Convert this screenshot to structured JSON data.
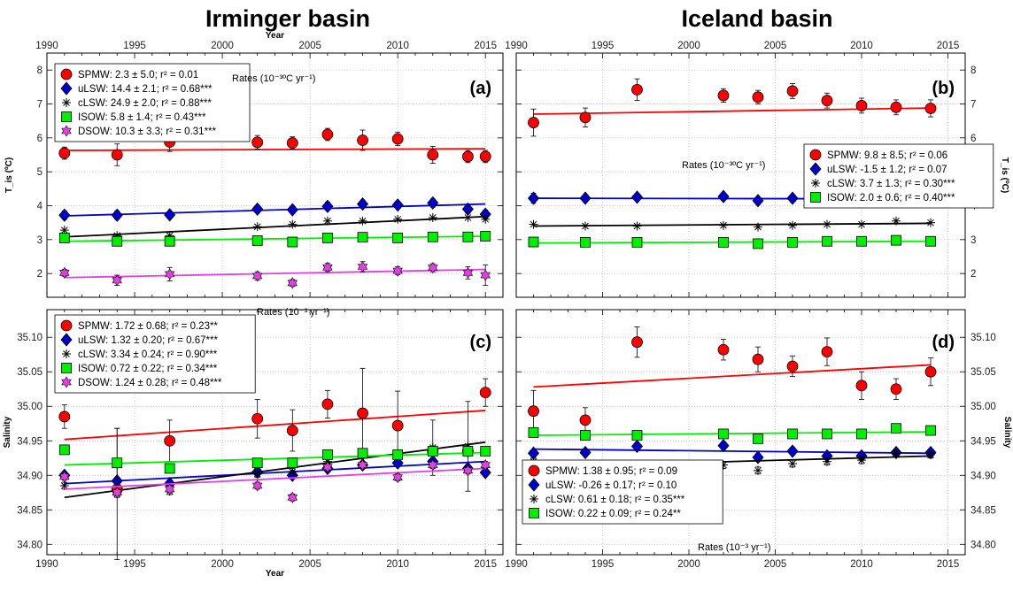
{
  "titles": {
    "left": "Irminger basin",
    "right": "Iceland basin"
  },
  "xlabel": "Year",
  "colors": {
    "SPMW": "#ff0000",
    "uLSW": "#0000cc",
    "cLSW": "#000000",
    "ISOW": "#00ee00",
    "DSOW": "#e040e0"
  },
  "chart_data": [
    {
      "type": "scatter",
      "panel_label": "(a)",
      "xlim": [
        1990,
        2016
      ],
      "ylim": [
        1.3,
        8.5
      ],
      "xticks": [
        "1990",
        "1995",
        "2000",
        "2005",
        "2010",
        "2015"
      ],
      "yticks": [
        "2",
        "3",
        "4",
        "5",
        "6",
        "7",
        "8"
      ],
      "ylabel": "T_is (ºC)",
      "rates": "Rates (10⁻³ºC yr⁻¹)",
      "series": [
        {
          "name": "SPMW",
          "legend": "SPMW: 2.3 ± 5.0; r² = 0.01",
          "x": [
            1991,
            1994,
            1997,
            2002,
            2004,
            2006,
            2008,
            2010,
            2012,
            2014,
            2015
          ],
          "y": [
            5.55,
            5.5,
            5.88,
            5.87,
            5.85,
            6.1,
            5.93,
            5.97,
            5.5,
            5.45,
            5.45
          ],
          "err": [
            0.18,
            0.32,
            0.28,
            0.2,
            0.18,
            0.18,
            0.3,
            0.2,
            0.25,
            0.18,
            0.18
          ],
          "trend": [
            [
              1991,
              5.63
            ],
            [
              2015,
              5.68
            ]
          ]
        },
        {
          "name": "uLSW",
          "legend": "uLSW: 14.4 ± 2.1; r² = 0.68***",
          "x": [
            1991,
            1994,
            1997,
            2002,
            2004,
            2006,
            2008,
            2010,
            2012,
            2014,
            2015
          ],
          "y": [
            3.72,
            3.72,
            3.73,
            3.9,
            3.88,
            3.98,
            4.05,
            4.02,
            4.08,
            3.9,
            3.75
          ],
          "err": [
            0.12,
            0.12,
            0.1,
            0.1,
            0.1,
            0.12,
            0.1,
            0.1,
            0.12,
            0.12,
            0.12
          ],
          "trend": [
            [
              1991,
              3.7
            ],
            [
              2015,
              4.05
            ]
          ]
        },
        {
          "name": "cLSW",
          "legend": "cLSW: 24.9 ± 2.0; r² = 0.88***",
          "x": [
            1991,
            1994,
            1997,
            2002,
            2004,
            2006,
            2008,
            2010,
            2012,
            2014,
            2015
          ],
          "y": [
            3.28,
            3.12,
            3.12,
            3.38,
            3.45,
            3.55,
            3.55,
            3.6,
            3.65,
            3.65,
            3.6
          ],
          "err": [
            0,
            0,
            0,
            0,
            0,
            0,
            0,
            0,
            0,
            0,
            0
          ],
          "trend": [
            [
              1991,
              3.08
            ],
            [
              2015,
              3.68
            ]
          ]
        },
        {
          "name": "ISOW",
          "legend": "ISOW: 5.8 ± 1.4; r² = 0.43***",
          "x": [
            1991,
            1994,
            1997,
            2002,
            2004,
            2006,
            2008,
            2010,
            2012,
            2014,
            2015
          ],
          "y": [
            3.05,
            2.95,
            2.95,
            2.97,
            2.93,
            3.05,
            3.07,
            3.05,
            3.08,
            3.08,
            3.1
          ],
          "err": [
            0.08,
            0.08,
            0.08,
            0.08,
            0.08,
            0.08,
            0.08,
            0.08,
            0.08,
            0.08,
            0.08
          ],
          "trend": [
            [
              1991,
              2.95
            ],
            [
              2015,
              3.1
            ]
          ]
        },
        {
          "name": "DSOW",
          "legend": "DSOW: 10.3 ± 3.3; r² = 0.31***",
          "x": [
            1991,
            1994,
            1997,
            2002,
            2004,
            2006,
            2008,
            2010,
            2012,
            2014,
            2015
          ],
          "y": [
            2.02,
            1.8,
            1.98,
            1.93,
            1.72,
            2.18,
            2.2,
            2.08,
            2.17,
            2.02,
            1.95
          ],
          "err": [
            0.1,
            0.15,
            0.2,
            0.12,
            0.1,
            0.12,
            0.15,
            0.12,
            0.12,
            0.18,
            0.3
          ],
          "trend": [
            [
              1991,
              1.88
            ],
            [
              2015,
              2.12
            ]
          ]
        }
      ]
    },
    {
      "type": "scatter",
      "panel_label": "(b)",
      "xlim": [
        1990,
        2016
      ],
      "ylim": [
        1.3,
        8.5
      ],
      "xticks": [
        "1990",
        "1995",
        "2000",
        "2005",
        "2010",
        "2015"
      ],
      "yticks": [
        "2",
        "3",
        "4",
        "5",
        "6",
        "7",
        "8"
      ],
      "ylabel": "T_is (ºC)",
      "rates": "Rates (10⁻³ºC yr⁻¹)",
      "series": [
        {
          "name": "SPMW",
          "legend": "SPMW: 9.8 ± 8.5; r² = 0.06",
          "x": [
            1991,
            1994,
            1997,
            2002,
            2004,
            2006,
            2008,
            2010,
            2012,
            2014
          ],
          "y": [
            6.45,
            6.6,
            7.42,
            7.25,
            7.2,
            7.38,
            7.1,
            6.95,
            6.9,
            6.87
          ],
          "err": [
            0.4,
            0.28,
            0.32,
            0.2,
            0.2,
            0.22,
            0.22,
            0.22,
            0.22,
            0.25
          ],
          "trend": [
            [
              1991,
              6.7
            ],
            [
              2014,
              6.88
            ]
          ]
        },
        {
          "name": "uLSW",
          "legend": "uLSW: -1.5 ± 1.2; r² = 0.07",
          "x": [
            1991,
            1994,
            1997,
            2002,
            2004,
            2006,
            2008,
            2010,
            2012,
            2014
          ],
          "y": [
            4.22,
            4.22,
            4.25,
            4.27,
            4.15,
            4.22,
            4.18,
            4.2,
            4.22,
            4.22
          ],
          "err": [
            0.15,
            0.08,
            0.08,
            0.1,
            0.1,
            0.1,
            0.1,
            0.1,
            0.1,
            0.1
          ],
          "trend": [
            [
              1991,
              4.22
            ],
            [
              2014,
              4.2
            ]
          ]
        },
        {
          "name": "cLSW",
          "legend": "cLSW: 3.7 ± 1.3; r² = 0.30***",
          "x": [
            1991,
            1994,
            1997,
            2002,
            2004,
            2006,
            2008,
            2010,
            2012,
            2014
          ],
          "y": [
            3.45,
            3.4,
            3.4,
            3.42,
            3.37,
            3.42,
            3.45,
            3.45,
            3.55,
            3.5
          ],
          "err": [
            0,
            0,
            0,
            0,
            0,
            0,
            0,
            0,
            0,
            0
          ],
          "trend": [
            [
              1991,
              3.4
            ],
            [
              2014,
              3.48
            ]
          ]
        },
        {
          "name": "ISOW",
          "legend": "ISOW: 2.0 ± 0.6; r² = 0.40***",
          "x": [
            1991,
            1994,
            1997,
            2002,
            2004,
            2006,
            2008,
            2010,
            2012,
            2014
          ],
          "y": [
            2.93,
            2.92,
            2.92,
            2.92,
            2.88,
            2.92,
            2.95,
            2.95,
            2.98,
            2.95
          ],
          "err": [
            0.05,
            0.05,
            0.05,
            0.05,
            0.05,
            0.05,
            0.05,
            0.05,
            0.05,
            0.05
          ],
          "trend": [
            [
              1991,
              2.9
            ],
            [
              2014,
              2.95
            ]
          ]
        }
      ]
    },
    {
      "type": "scatter",
      "panel_label": "(c)",
      "xlim": [
        1990,
        2016
      ],
      "ylim": [
        34.785,
        35.14
      ],
      "xticks": [
        "1990",
        "1995",
        "2000",
        "2005",
        "2010",
        "2015"
      ],
      "yticks": [
        "34.80",
        "34.85",
        "34.90",
        "34.95",
        "35.00",
        "35.05",
        "35.10"
      ],
      "ylabel": "Salinity",
      "rates": "Rates (10⁻³ yr⁻¹)",
      "series": [
        {
          "name": "SPMW",
          "legend": "SPMW: 1.72 ± 0.68; r² = 0.23**",
          "x": [
            1991,
            1994,
            1997,
            2002,
            2004,
            2006,
            2008,
            2010,
            2012,
            2014,
            2015
          ],
          "y": [
            34.985,
            34.88,
            34.95,
            34.982,
            34.965,
            35.003,
            34.99,
            34.972,
            34.935,
            34.935,
            35.02
          ],
          "err": [
            0.017,
            0.0,
            0.03,
            0.028,
            0.03,
            0.02,
            0.065,
            0.05,
            0.0,
            0.0,
            0.02
          ],
          "trend": [
            [
              1991,
              34.952
            ],
            [
              2015,
              34.994
            ]
          ]
        },
        {
          "name": "uLSW",
          "legend": "uLSW: 1.32 ± 0.20; r² = 0.67***",
          "x": [
            1991,
            1994,
            1997,
            2002,
            2004,
            2006,
            2008,
            2010,
            2012,
            2014,
            2015
          ],
          "y": [
            34.9,
            34.892,
            34.888,
            34.905,
            34.9,
            34.91,
            34.915,
            34.918,
            34.92,
            34.91,
            34.904
          ],
          "err": [
            0.005,
            0.005,
            0.005,
            0.005,
            0.005,
            0.005,
            0.005,
            0.005,
            0.005,
            0.005,
            0.005
          ],
          "trend": [
            [
              1991,
              34.888
            ],
            [
              2015,
              34.92
            ]
          ]
        },
        {
          "name": "cLSW",
          "legend": "cLSW: 3.34 ± 0.24; r² = 0.90***",
          "x": [
            1991,
            1994,
            1997,
            2002,
            2004,
            2006,
            2008,
            2010,
            2012,
            2014,
            2015
          ],
          "y": [
            34.885,
            34.873,
            34.877,
            34.902,
            34.905,
            34.92,
            34.915,
            34.93,
            34.94,
            34.942,
            34.935
          ],
          "err": [
            0.005,
            0.095,
            0.005,
            0.005,
            0.005,
            0.005,
            0.005,
            0.005,
            0.04,
            0.065,
            0.005
          ],
          "trend": [
            [
              1991,
              34.868
            ],
            [
              2015,
              34.948
            ]
          ]
        },
        {
          "name": "ISOW",
          "legend": "ISOW: 0.72 ± 0.22; r² = 0.34***",
          "x": [
            1991,
            1994,
            1997,
            2002,
            2004,
            2006,
            2008,
            2010,
            2012,
            2014,
            2015
          ],
          "y": [
            34.937,
            34.918,
            34.91,
            34.918,
            34.918,
            34.93,
            34.932,
            34.93,
            34.935,
            34.935,
            34.935
          ],
          "err": [
            0.004,
            0.05,
            0.004,
            0.004,
            0.004,
            0.004,
            0.004,
            0.004,
            0.004,
            0.004,
            0.004
          ],
          "trend": [
            [
              1991,
              34.915
            ],
            [
              2015,
              34.933
            ]
          ]
        },
        {
          "name": "DSOW",
          "legend": "DSOW: 1.24 ± 0.28; r² = 0.48***",
          "x": [
            1991,
            1994,
            1997,
            2002,
            2004,
            2006,
            2008,
            2010,
            2012,
            2014,
            2015
          ],
          "y": [
            34.898,
            34.875,
            34.88,
            34.885,
            34.868,
            34.912,
            34.915,
            34.897,
            34.915,
            34.907,
            34.915
          ],
          "err": [
            0.005,
            0.005,
            0.005,
            0.005,
            0.005,
            0.005,
            0.005,
            0.005,
            0.005,
            0.005,
            0.005
          ],
          "trend": [
            [
              1991,
              34.88
            ],
            [
              2015,
              34.91
            ]
          ]
        }
      ]
    },
    {
      "type": "scatter",
      "panel_label": "(d)",
      "xlim": [
        1990,
        2016
      ],
      "ylim": [
        34.785,
        35.14
      ],
      "xticks": [
        "1990",
        "1995",
        "2000",
        "2005",
        "2010",
        "2015"
      ],
      "yticks": [
        "34.80",
        "34.85",
        "34.90",
        "34.95",
        "35.00",
        "35.05",
        "35.10"
      ],
      "ylabel": "Salinity",
      "rates": "Rates (10⁻³ yr⁻¹)",
      "series": [
        {
          "name": "SPMW",
          "legend": "SPMW: 1.38 ± 0.95; r² = 0.09",
          "x": [
            1991,
            1994,
            1997,
            2002,
            2004,
            2006,
            2008,
            2010,
            2012,
            2014
          ],
          "y": [
            34.993,
            34.98,
            35.093,
            35.082,
            35.068,
            35.058,
            35.079,
            35.03,
            35.025,
            35.05
          ],
          "err": [
            0.03,
            0.018,
            0.022,
            0.015,
            0.018,
            0.015,
            0.02,
            0.02,
            0.015,
            0.02
          ],
          "trend": [
            [
              1991,
              35.028
            ],
            [
              2014,
              35.06
            ]
          ]
        },
        {
          "name": "uLSW",
          "legend": "uLSW: -0.26 ± 0.17; r² = 0.10",
          "x": [
            1991,
            1994,
            1997,
            2002,
            2004,
            2006,
            2008,
            2010,
            2012,
            2014
          ],
          "y": [
            34.932,
            34.933,
            34.942,
            34.943,
            34.926,
            34.935,
            34.928,
            34.928,
            34.933,
            34.933
          ],
          "err": [
            0.005,
            0.005,
            0.005,
            0.005,
            0.005,
            0.005,
            0.005,
            0.005,
            0.005,
            0.005
          ],
          "trend": [
            [
              1991,
              34.938
            ],
            [
              2014,
              34.932
            ]
          ]
        },
        {
          "name": "cLSW",
          "legend": "cLSW: 0.61 ± 0.18; r² = 0.35***",
          "x": [
            1991,
            1994,
            1997,
            2002,
            2004,
            2006,
            2008,
            2010,
            2012,
            2014
          ],
          "y": [
            34.92,
            34.915,
            34.913,
            34.915,
            34.907,
            34.917,
            34.92,
            34.922,
            34.932,
            34.93
          ],
          "err": [
            0.005,
            0.005,
            0.005,
            0.005,
            0.005,
            0.005,
            0.005,
            0.005,
            0.005,
            0.005
          ],
          "trend": [
            [
              1991,
              34.912
            ],
            [
              2014,
              34.928
            ]
          ]
        },
        {
          "name": "ISOW",
          "legend": "ISOW: 0.22 ± 0.09; r² = 0.24**",
          "x": [
            1991,
            1994,
            1997,
            2002,
            2004,
            2006,
            2008,
            2010,
            2012,
            2014
          ],
          "y": [
            34.962,
            34.958,
            34.958,
            34.96,
            34.953,
            34.96,
            34.96,
            34.96,
            34.968,
            34.965
          ],
          "err": [
            0.004,
            0.004,
            0.004,
            0.004,
            0.004,
            0.004,
            0.004,
            0.004,
            0.004,
            0.004
          ],
          "trend": [
            [
              1991,
              34.958
            ],
            [
              2014,
              34.963
            ]
          ]
        }
      ]
    }
  ]
}
